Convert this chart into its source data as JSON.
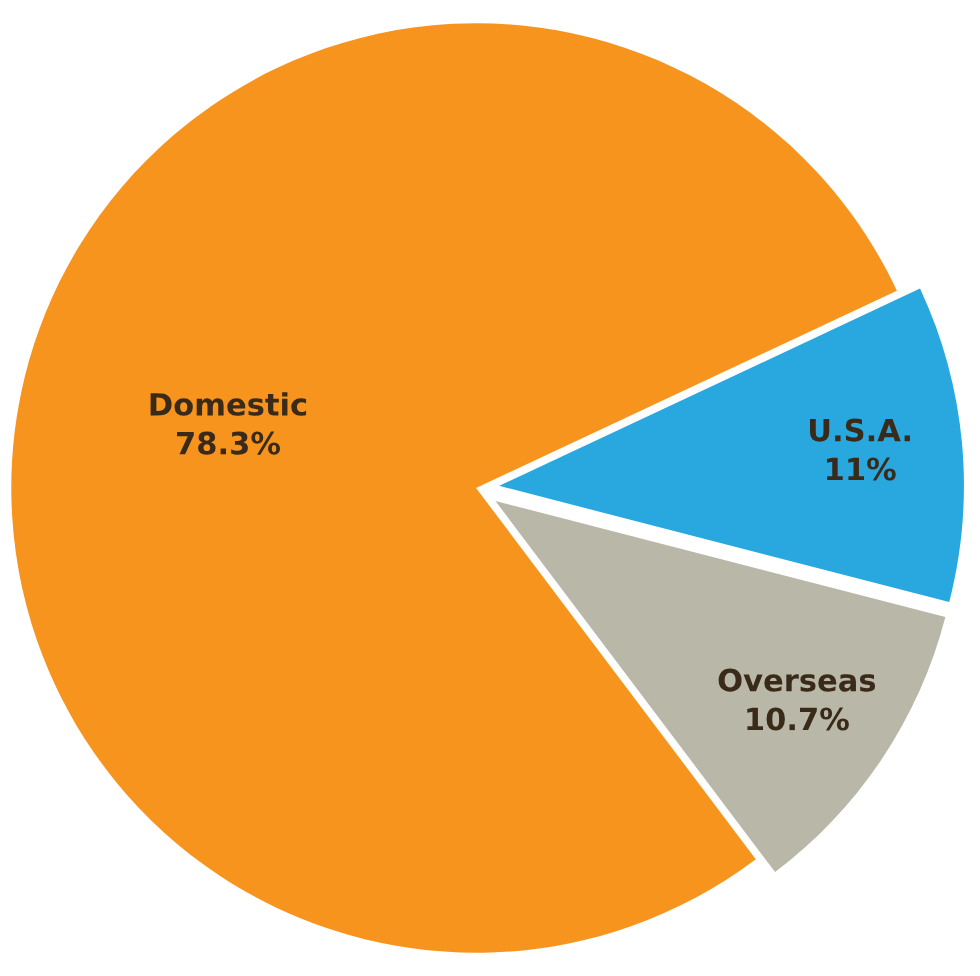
{
  "chart_data": {
    "type": "pie",
    "categories": [
      "Domestic",
      "U.S.A.",
      "Overseas"
    ],
    "values": [
      78.3,
      11,
      10.7
    ],
    "value_labels": [
      "78.3%",
      "11%",
      "10.7%"
    ],
    "colors": [
      "#f7941d",
      "#29a8e0",
      "#b9b8a8"
    ]
  }
}
